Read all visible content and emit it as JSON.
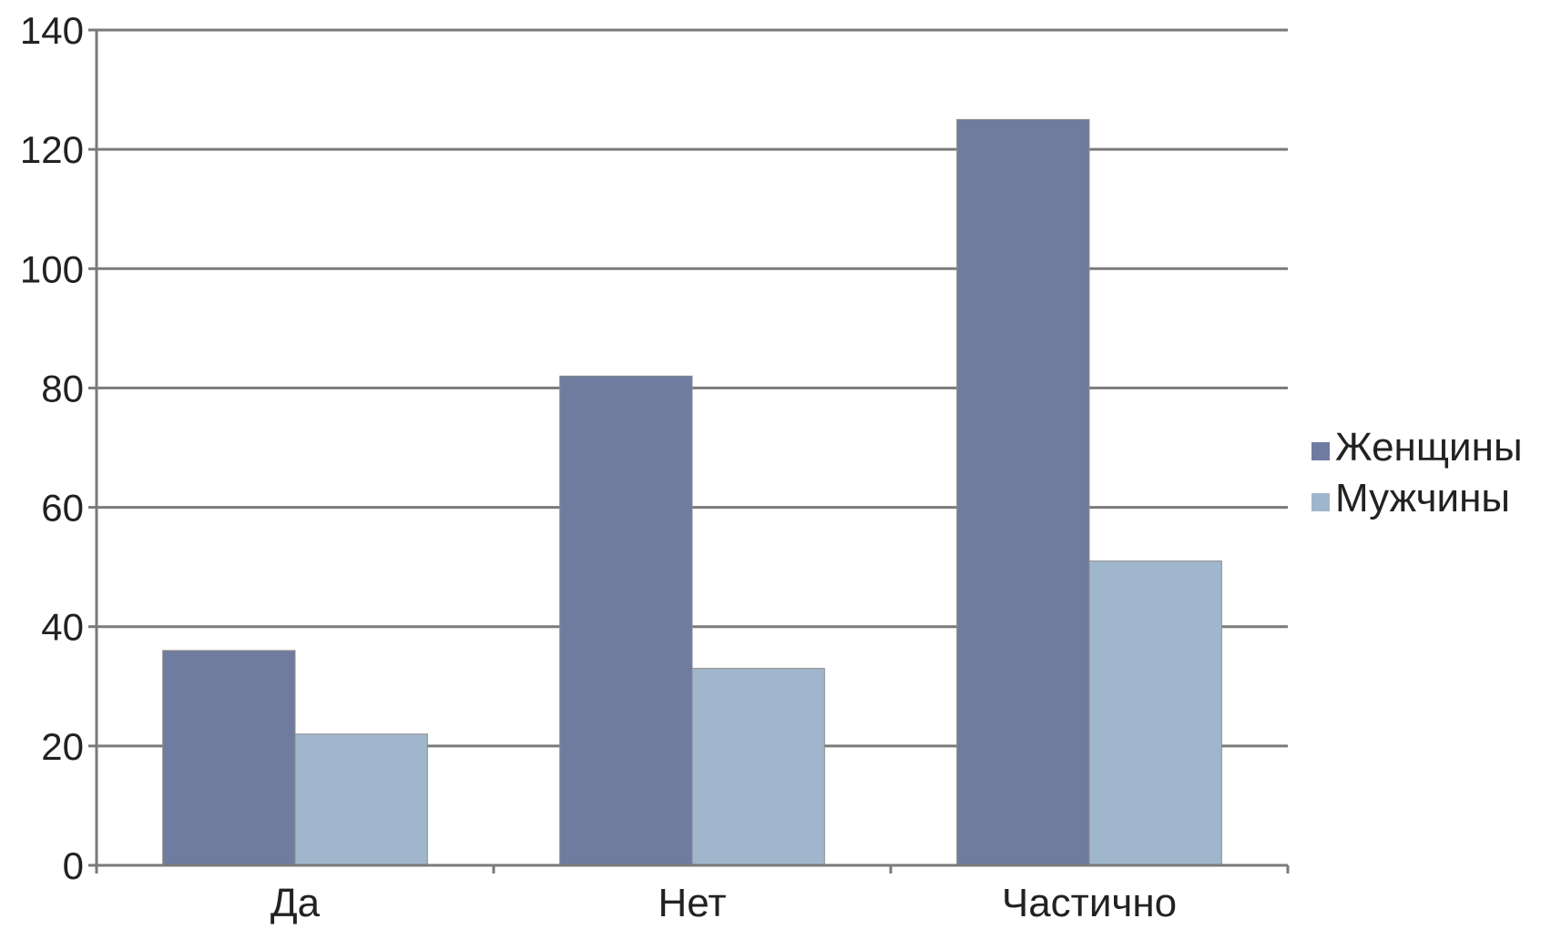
{
  "chart_data": {
    "type": "bar",
    "title": "",
    "xlabel": "",
    "ylabel": "",
    "categories": [
      "Да",
      "Нет",
      "Частично"
    ],
    "series": [
      {
        "name": "Женщины",
        "values": [
          36,
          82,
          125
        ],
        "color": "#707ba0"
      },
      {
        "name": "Мужчины",
        "values": [
          22,
          33,
          51
        ],
        "color": "#a0b6cc"
      }
    ],
    "ylim": [
      0,
      140
    ],
    "yticks": [
      0,
      20,
      40,
      60,
      80,
      100,
      120,
      140
    ],
    "grid": true,
    "legend_position": "right"
  }
}
